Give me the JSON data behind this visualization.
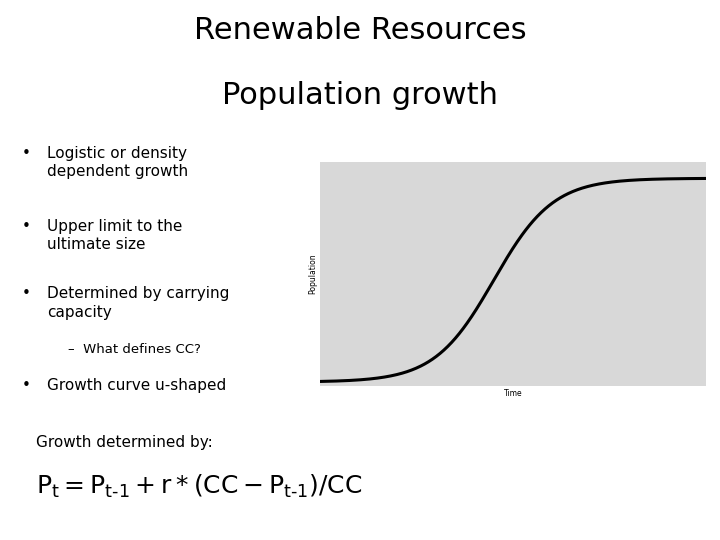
{
  "title_line1": "Renewable Resources",
  "title_line2": "Population growth",
  "title_fontsize": 22,
  "bullets": [
    "Logistic or density\ndependent growth",
    "Upper limit to the\nultimate size",
    "Determined by carrying\ncapacity",
    "Growth curve u-shaped"
  ],
  "sub_bullet": "–  What defines CC?",
  "growth_label": "Growth determined by:",
  "formula_fontsize": 18,
  "growth_label_fontsize": 11,
  "bullet_fontsize": 11,
  "sub_bullet_fontsize": 9.5,
  "chart_bg_color": "#d8d8d8",
  "chart_xlabel": "Time",
  "chart_ylabel": "Population",
  "bg_color": "#ffffff"
}
